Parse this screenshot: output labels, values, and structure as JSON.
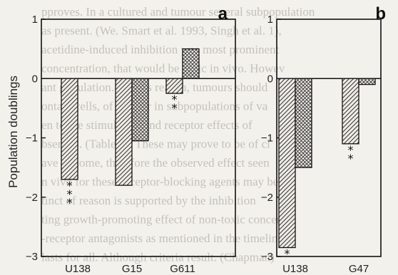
{
  "background_text": [
    "pproves. In a cultured and tumour several subpopulation",
    "as present. (We. Smart et al. 1993, Singh et al. 1),",
    "acetidine-induced inhibition was most prominent",
    "concentration, that would be toxic in vivo. Howev",
    "ant population. for this reason, tumours should",
    "ontain cells, of tumour in subpopulations of va",
    "en to the stimulation and receptor effects of",
    "bserved. (Table 1). These may prove to be of cl",
    "ave of some, therefore the observed effect seen",
    "n vivo for these receptor-blocking agents may be",
    "tinct of reason is supported by the inhibition",
    "ting growth-promoting effect of non-toxic concentra",
    "-receptor antagonists as mentioned in the timeline",
    "lasts for all. Although criteria result. (Chapman)"
  ],
  "chart_data": [
    {
      "panel": "a",
      "type": "bar",
      "ylabel": "Population doublings",
      "ylim": [
        -3,
        1
      ],
      "yticks": [
        "1",
        "0",
        "−1",
        "−2",
        "−3"
      ],
      "categories": [
        "U138",
        "G15",
        "G611"
      ],
      "series": [
        {
          "pattern": "hatched",
          "values": [
            -1.7,
            -1.8,
            -0.25
          ]
        },
        {
          "pattern": "crosshatched",
          "values": [
            0,
            -1.05,
            0.5
          ]
        }
      ],
      "significance": [
        "***",
        "",
        "**"
      ]
    },
    {
      "panel": "b",
      "type": "bar",
      "ylim": [
        -3,
        1
      ],
      "yticks": [
        "1",
        "0",
        "−1",
        "−2",
        "−3"
      ],
      "categories": [
        "U138",
        "G47"
      ],
      "series": [
        {
          "pattern": "hatched",
          "values": [
            -2.85,
            -1.1
          ]
        },
        {
          "pattern": "crosshatched",
          "values": [
            -1.5,
            -0.1
          ]
        }
      ],
      "significance": [
        "*",
        "**"
      ]
    }
  ]
}
